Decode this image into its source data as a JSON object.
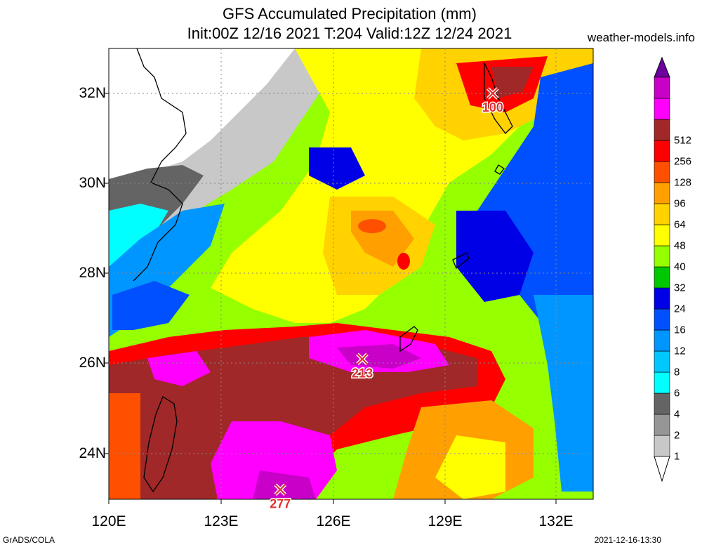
{
  "title": {
    "line1": "GFS Accumulated Precipitation (mm)",
    "line2": "Init:00Z 12/16 2021 T:204 Valid:12Z 12/24 2021"
  },
  "website": "weather-models.info",
  "footer": {
    "left": "GrADS/COLA",
    "right": "2021-12-16-13:30"
  },
  "axes": {
    "lon_labels": [
      "120E",
      "123E",
      "126E",
      "129E",
      "132E"
    ],
    "lat_labels": [
      "32N",
      "30N",
      "28N",
      "26N",
      "24N"
    ]
  },
  "colorbar": {
    "levels": [
      "1",
      "2",
      "4",
      "6",
      "8",
      "12",
      "16",
      "24",
      "32",
      "40",
      "48",
      "64",
      "96",
      "128",
      "256",
      "512"
    ],
    "colors": [
      "#c8c8c8",
      "#969696",
      "#646464",
      "#00ffff",
      "#00c8ff",
      "#0096ff",
      "#0050ff",
      "#0000e6",
      "#00c800",
      "#96ff00",
      "#ffff00",
      "#ffd200",
      "#ffa000",
      "#ff5000",
      "#ff0000",
      "#a02828",
      "#ff00ff",
      "#c800c8",
      "#9600c8",
      "#6e00a0"
    ]
  },
  "maxima": [
    {
      "label": "100",
      "lon": 130.3,
      "lat": 32.0
    },
    {
      "label": "213",
      "lon": 126.8,
      "lat": 26.1
    },
    {
      "label": "277",
      "lon": 124.6,
      "lat": 23.2
    }
  ]
}
